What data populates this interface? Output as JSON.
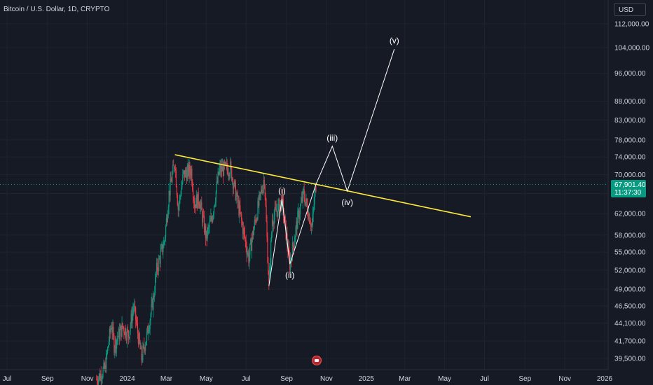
{
  "header": {
    "symbol_title": "Bitcoin / U.S. Dollar, 1D, CRYPTO",
    "currency": "USD"
  },
  "price_tag": {
    "price": "67,901.40",
    "countdown": "11:37:30",
    "value": 67901.4,
    "color": "#089981"
  },
  "colors": {
    "background": "#161a25",
    "up": "#089981",
    "down": "#f23645",
    "trendline": "#ffeb3b",
    "wave": "#ffffff",
    "text": "#d1d4dc"
  },
  "chart_data": {
    "type": "candlestick",
    "symbol": "BTCUSD",
    "interval": "1D",
    "y_scale": "log",
    "y_ticks": [
      39500,
      41700,
      44100,
      46500,
      49000,
      52000,
      55000,
      58000,
      62000,
      66000,
      70000,
      74000,
      78000,
      83000,
      88000,
      96000,
      104000,
      112000
    ],
    "y_tick_labels": [
      "39,500.00",
      "41,700.00",
      "44,100.00",
      "46,500.00",
      "49,000.00",
      "52,000.00",
      "55,000.00",
      "58,000.00",
      "62,000.00",
      "66,000.00",
      "70,000.00",
      "74,000.00",
      "78,000.00",
      "83,000.00",
      "88,000.00",
      "96,000.00",
      "104,000.00",
      "112,000.00"
    ],
    "x_ticks": [
      "2023-07-01",
      "2023-09-01",
      "2023-11-01",
      "2024-01-01",
      "2024-03-01",
      "2024-05-01",
      "2024-07-01",
      "2024-09-01",
      "2024-11-01",
      "2025-01-01",
      "2025-03-01",
      "2025-05-01",
      "2025-07-01",
      "2025-09-01",
      "2025-11-01",
      "2026-01-01"
    ],
    "x_tick_labels": [
      "Jul",
      "Sep",
      "Nov",
      "2024",
      "Mar",
      "May",
      "Jul",
      "Sep",
      "Nov",
      "2025",
      "Mar",
      "May",
      "Jul",
      "Sep",
      "Nov",
      "2026"
    ],
    "price_path": [
      {
        "date": "2023-11-15",
        "price": 37000
      },
      {
        "date": "2023-11-28",
        "price": 38200
      },
      {
        "date": "2023-12-04",
        "price": 41800
      },
      {
        "date": "2023-12-08",
        "price": 44000
      },
      {
        "date": "2023-12-12",
        "price": 41200
      },
      {
        "date": "2023-12-25",
        "price": 43600
      },
      {
        "date": "2024-01-03",
        "price": 42500
      },
      {
        "date": "2024-01-11",
        "price": 46500
      },
      {
        "date": "2024-01-23",
        "price": 39500
      },
      {
        "date": "2024-02-01",
        "price": 42800
      },
      {
        "date": "2024-02-10",
        "price": 47500
      },
      {
        "date": "2024-02-15",
        "price": 52000
      },
      {
        "date": "2024-02-27",
        "price": 57000
      },
      {
        "date": "2024-03-05",
        "price": 66000
      },
      {
        "date": "2024-03-14",
        "price": 73000
      },
      {
        "date": "2024-03-19",
        "price": 63000
      },
      {
        "date": "2024-03-27",
        "price": 70000
      },
      {
        "date": "2024-04-08",
        "price": 71000
      },
      {
        "date": "2024-04-13",
        "price": 64000
      },
      {
        "date": "2024-04-20",
        "price": 65000
      },
      {
        "date": "2024-05-01",
        "price": 57500
      },
      {
        "date": "2024-05-10",
        "price": 61500
      },
      {
        "date": "2024-05-21",
        "price": 71000
      },
      {
        "date": "2024-06-07",
        "price": 71500
      },
      {
        "date": "2024-06-24",
        "price": 60500
      },
      {
        "date": "2024-07-05",
        "price": 54000
      },
      {
        "date": "2024-07-14",
        "price": 60000
      },
      {
        "date": "2024-07-29",
        "price": 69500
      },
      {
        "date": "2024-08-05",
        "price": 49500
      },
      {
        "date": "2024-08-10",
        "price": 61000
      },
      {
        "date": "2024-08-25",
        "price": 64500
      },
      {
        "date": "2024-09-06",
        "price": 53000
      },
      {
        "date": "2024-09-18",
        "price": 61000
      },
      {
        "date": "2024-09-27",
        "price": 66000
      },
      {
        "date": "2024-10-10",
        "price": 59500
      },
      {
        "date": "2024-10-14",
        "price": 65500
      },
      {
        "date": "2024-10-16",
        "price": 67900
      }
    ],
    "trendline": {
      "color": "#ffeb3b",
      "points": [
        {
          "date": "2024-03-14",
          "price": 74500
        },
        {
          "date": "2025-06-10",
          "price": 61400
        }
      ]
    },
    "wave_projection": {
      "color": "#ffffff",
      "points": [
        {
          "label": "",
          "date": "2024-08-05",
          "price": 49500
        },
        {
          "label": "(i)",
          "date": "2024-08-25",
          "price": 64900
        },
        {
          "label": "(ii)",
          "date": "2024-09-06",
          "price": 53000
        },
        {
          "label": "",
          "date": "2024-10-16",
          "price": 67900
        },
        {
          "label": "(iii)",
          "date": "2024-11-10",
          "price": 76500
        },
        {
          "label": "(iv)",
          "date": "2024-12-03",
          "price": 66500
        },
        {
          "label": "(v)",
          "date": "2025-02-13",
          "price": 103500
        }
      ]
    }
  }
}
